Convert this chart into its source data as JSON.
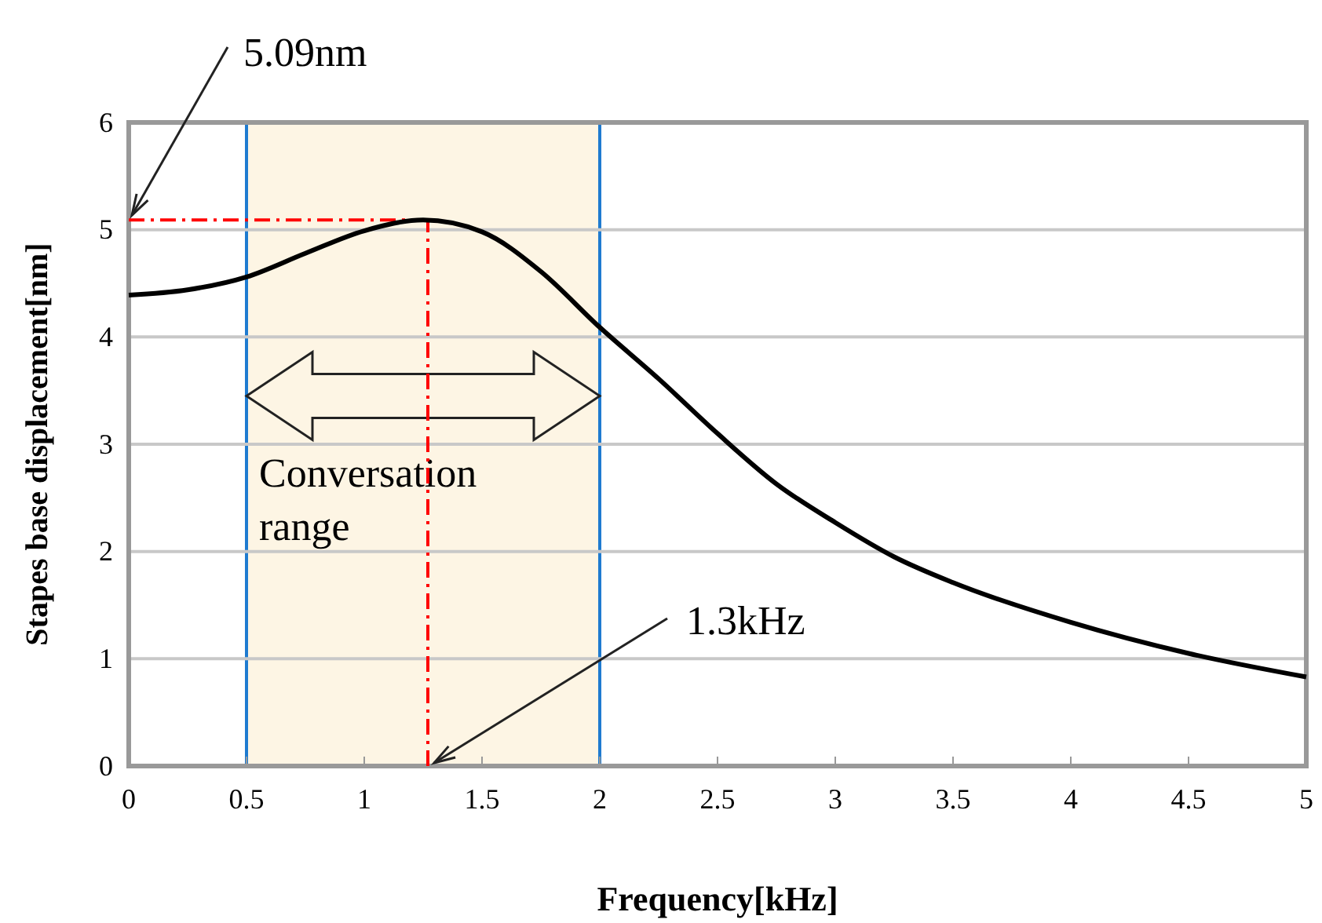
{
  "chart_data": {
    "type": "line",
    "xlabel": "Frequency[kHz]",
    "ylabel": "Stapes base displacement[nm]",
    "x": [
      0,
      0.25,
      0.5,
      0.75,
      1,
      1.25,
      1.5,
      1.75,
      2,
      2.25,
      2.5,
      2.75,
      3,
      3.25,
      3.5,
      4,
      4.5,
      5
    ],
    "series": [
      {
        "color": "#000000",
        "values": [
          4.39,
          4.44,
          4.56,
          4.78,
          4.99,
          5.09,
          4.98,
          4.61,
          4.09,
          3.61,
          3.1,
          2.63,
          2.27,
          1.95,
          1.71,
          1.34,
          1.05,
          0.83
        ]
      }
    ],
    "xlim": [
      0,
      5
    ],
    "xticks": [
      0,
      0.5,
      1,
      1.5,
      2,
      2.5,
      3,
      3.5,
      4,
      4.5,
      5
    ],
    "ylim": [
      0,
      6
    ],
    "yticks": [
      0,
      1,
      2,
      3,
      4,
      5,
      6
    ],
    "grid": "y",
    "marker": "none",
    "line_style": "solid",
    "ref_lines": [
      {
        "axis": "y",
        "value": 5.09,
        "label": "5.09nm",
        "color": "#ff0000",
        "line_style": "dashdot"
      },
      {
        "axis": "x",
        "value": 1.27,
        "label": "1.3kHz",
        "color": "#ff0000",
        "line_style": "dashdot"
      }
    ],
    "bands": [
      {
        "axis": "x",
        "from": 0.5,
        "to": 2,
        "label": "Conversation range",
        "color": "#fdf5e4"
      }
    ]
  }
}
